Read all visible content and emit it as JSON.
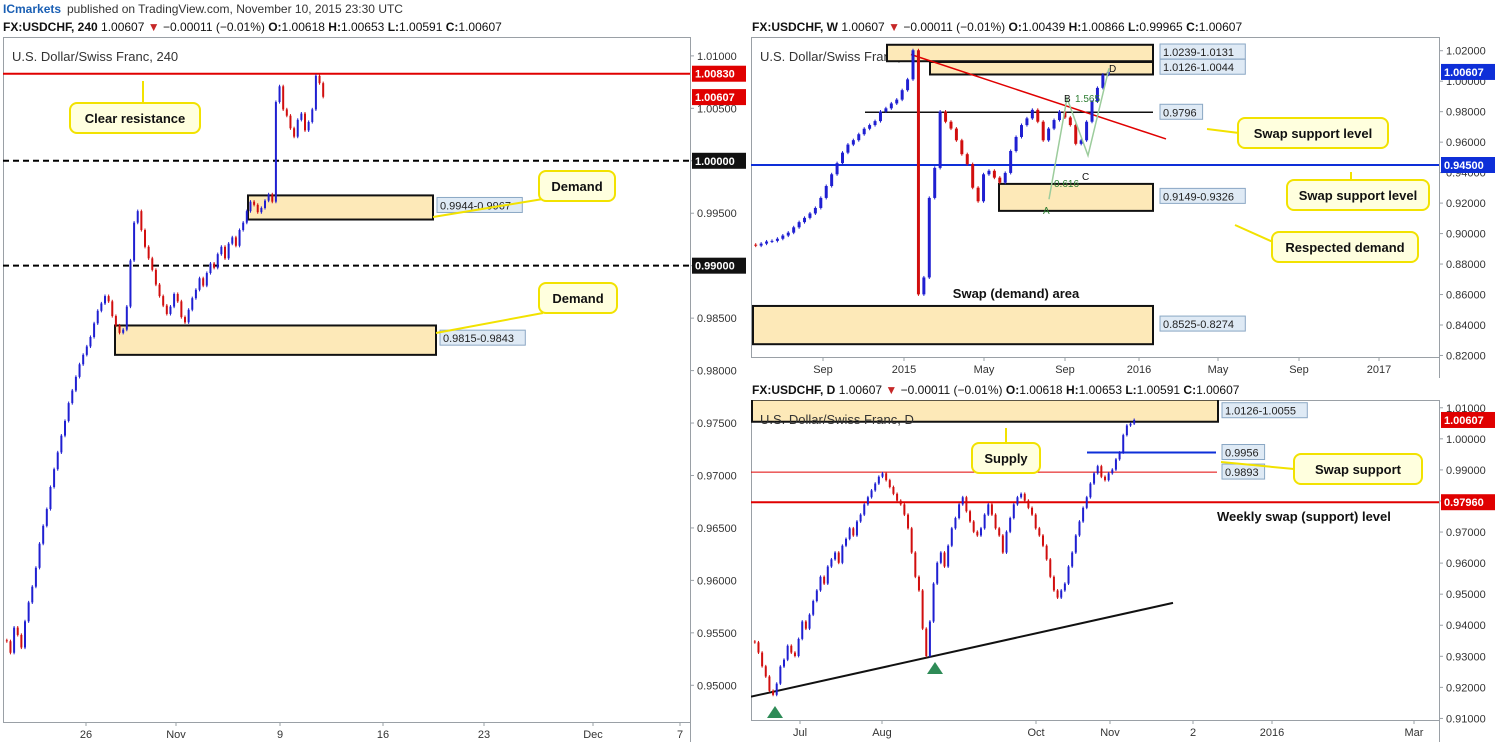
{
  "topbar": {
    "brand": "ICmarkets",
    "published": "published on TradingView.com, November 10, 2015 23:30 UTC"
  },
  "colors": {
    "bull": "#1f1fd1",
    "bear": "#d10e0e",
    "zone_fill": "#fde9b8",
    "callout_border": "#f2e200",
    "callout_fill": "#ffffde",
    "resistance": "#e00000",
    "swap_blue": "#0e2fd8",
    "arrow_green": "#2e8b57"
  },
  "headers": {
    "h4": {
      "symbol": "FX:USDCHF, 240",
      "price": "1.00607",
      "change": "−0.00011 (−0.01%)",
      "o_label": "O:",
      "o": "1.00618",
      "h_label": "H:",
      "h": "1.00653",
      "l_label": "L:",
      "l": "1.00591",
      "c_label": "C:",
      "c": "1.00607"
    },
    "w": {
      "symbol": "FX:USDCHF, W",
      "price": "1.00607",
      "change": "−0.00011 (−0.01%)",
      "o_label": "O:",
      "o": "1.00439",
      "h_label": "H:",
      "h": "1.00866",
      "l_label": "L:",
      "l": "0.99965",
      "c_label": "C:",
      "c": "1.00607"
    },
    "d": {
      "symbol": "FX:USDCHF, D",
      "price": "1.00607",
      "change": "−0.00011 (−0.01%)",
      "o_label": "O:",
      "o": "1.00618",
      "h_label": "H:",
      "h": "1.00653",
      "l_label": "L:",
      "l": "1.00591",
      "c_label": "C:",
      "c": "1.00607"
    }
  },
  "chart_data": [
    {
      "id": "h4",
      "type": "candlestick",
      "title": "U.S. Dollar/Swiss Franc, 240",
      "ylim": [
        0.9465,
        1.0118
      ],
      "yticks": [
        "1.01000",
        "1.00500",
        "1.00000",
        "0.99500",
        "0.99000",
        "0.98500",
        "0.98000",
        "0.97500",
        "0.97000",
        "0.96500",
        "0.96000",
        "0.95500",
        "0.95000"
      ],
      "xticks": [
        "26",
        "Nov",
        "9",
        "16",
        "23",
        "Dec",
        "7"
      ],
      "closes": [
        0.9542,
        0.9531,
        0.9555,
        0.9548,
        0.9536,
        0.9561,
        0.9579,
        0.9594,
        0.9612,
        0.9635,
        0.9652,
        0.9668,
        0.9689,
        0.9706,
        0.9722,
        0.9738,
        0.9752,
        0.9769,
        0.9781,
        0.9794,
        0.9806,
        0.9815,
        0.9823,
        0.9832,
        0.9845,
        0.9857,
        0.9864,
        0.9871,
        0.9866,
        0.9852,
        0.9843,
        0.9836,
        0.9839,
        0.9861,
        0.9905,
        0.9941,
        0.9952,
        0.9934,
        0.9918,
        0.9907,
        0.9896,
        0.9882,
        0.9871,
        0.9862,
        0.9854,
        0.9861,
        0.9873,
        0.9866,
        0.9851,
        0.9846,
        0.9858,
        0.9869,
        0.9877,
        0.9888,
        0.9881,
        0.9893,
        0.9902,
        0.9898,
        0.9911,
        0.9918,
        0.9907,
        0.9921,
        0.9927,
        0.9919,
        0.9934,
        0.9941,
        0.9952,
        0.9961,
        0.9958,
        0.9951,
        0.9955,
        0.9962,
        0.9968,
        0.9961,
        1.0056,
        1.0071,
        1.0049,
        1.0043,
        1.0031,
        1.0023,
        1.0039,
        1.0045,
        1.0029,
        1.0037,
        1.0049,
        1.0081,
        1.0074,
        1.0061
      ],
      "h_lines": [
        {
          "value": 1.0083,
          "label": "1.00830",
          "color": "#e00000",
          "style": "solid"
        },
        {
          "value": 1.0,
          "label": "1.00000",
          "color": "#000000",
          "style": "dashed"
        },
        {
          "value": 0.99,
          "label": "0.99000",
          "color": "#000000",
          "style": "dashed"
        }
      ],
      "last_price": {
        "value": 1.00607,
        "label": "1.00607"
      },
      "zones": [
        {
          "from": 0.9944,
          "to": 0.9967,
          "label": "0.9944-0.9967"
        },
        {
          "from": 0.9815,
          "to": 0.9843,
          "label": "0.9815-0.9843"
        }
      ],
      "annotations": [
        "Clear resistance",
        "Demand",
        "Demand"
      ]
    },
    {
      "id": "w",
      "type": "candlestick",
      "title": "U.S. Dollar/Swiss Franc, W",
      "ylim": [
        0.819,
        1.029
      ],
      "yticks": [
        "1.02000",
        "1.00000",
        "0.98000",
        "0.96000",
        "0.94000",
        "0.92000",
        "0.90000",
        "0.88000",
        "0.86000",
        "0.84000",
        "0.82000"
      ],
      "xticks": [
        "Sep",
        "2015",
        "May",
        "Sep",
        "2016",
        "May",
        "Sep",
        "2017"
      ],
      "closes": [
        0.8921,
        0.8934,
        0.8948,
        0.8952,
        0.8966,
        0.8987,
        0.9006,
        0.9041,
        0.9075,
        0.9103,
        0.9132,
        0.9168,
        0.9234,
        0.9312,
        0.9389,
        0.9462,
        0.9531,
        0.9584,
        0.9613,
        0.9652,
        0.9688,
        0.9712,
        0.9738,
        0.9801,
        0.9822,
        0.9854,
        0.9879,
        0.9941,
        1.0012,
        1.0203,
        0.8601,
        0.8712,
        0.9234,
        0.9431,
        0.9801,
        0.9734,
        0.9689,
        0.9612,
        0.9521,
        0.9456,
        0.9301,
        0.9212,
        0.9389,
        0.9412,
        0.9367,
        0.9334,
        0.9398,
        0.9542,
        0.9634,
        0.9712,
        0.9756,
        0.9812,
        0.9734,
        0.9612,
        0.9689,
        0.9745,
        0.9801,
        0.9762,
        0.9712,
        0.9589,
        0.9612,
        0.9734,
        0.9867,
        0.9956,
        1.0043,
        1.0061
      ],
      "h_lines": [
        {
          "value": 0.9796,
          "label": "0.9796",
          "color": "#000000",
          "style": "solid"
        },
        {
          "value": 0.945,
          "label": "0.94500",
          "color": "#0e2fd8",
          "style": "solid"
        }
      ],
      "last_price": {
        "value": 1.00607,
        "label": "1.00607"
      },
      "zones": [
        {
          "from": 1.0131,
          "to": 1.0239,
          "label": "1.0239-1.0131"
        },
        {
          "from": 1.0044,
          "to": 1.0126,
          "label": "1.0126-1.0044"
        },
        {
          "from": 0.9149,
          "to": 0.9326,
          "label": "0.9149-0.9326"
        },
        {
          "from": 0.8274,
          "to": 0.8525,
          "label": "0.8525-0.8274"
        }
      ],
      "pattern_labels": [
        "A",
        "B",
        "C",
        "D",
        "0.616",
        "1.565"
      ],
      "annotations": [
        "Swap support level",
        "Swap support level",
        "Respected demand",
        "Swap (demand) area"
      ]
    },
    {
      "id": "d",
      "type": "candlestick",
      "title": "U.S. Dollar/Swiss Franc, D",
      "ylim": [
        0.9095,
        1.0125
      ],
      "yticks": [
        "1.01000",
        "1.00000",
        "0.99000",
        "0.98000",
        "0.97000",
        "0.96000",
        "0.95000",
        "0.94000",
        "0.93000",
        "0.92000",
        "0.91000"
      ],
      "xticks": [
        "Jul",
        "Aug",
        "Oct",
        "Nov",
        "2",
        "2016",
        "Mar"
      ],
      "closes": [
        0.9345,
        0.9312,
        0.9268,
        0.9235,
        0.9189,
        0.9176,
        0.9212,
        0.9267,
        0.9289,
        0.9334,
        0.9312,
        0.9301,
        0.9356,
        0.9412,
        0.9389,
        0.9434,
        0.9478,
        0.9512,
        0.9556,
        0.9534,
        0.9589,
        0.9612,
        0.9634,
        0.9601,
        0.9656,
        0.9678,
        0.9712,
        0.9689,
        0.9734,
        0.9756,
        0.9789,
        0.9812,
        0.9834,
        0.9856,
        0.9878,
        0.9889,
        0.9867,
        0.9845,
        0.9823,
        0.9801,
        0.9789,
        0.9756,
        0.9712,
        0.9634,
        0.9556,
        0.9512,
        0.9389,
        0.9301,
        0.9412,
        0.9534,
        0.9601,
        0.9634,
        0.9589,
        0.9656,
        0.9712,
        0.9745,
        0.9789,
        0.9812,
        0.9767,
        0.9734,
        0.9701,
        0.9689,
        0.9712,
        0.9756,
        0.9789,
        0.9756,
        0.9712,
        0.9689,
        0.9634,
        0.9701,
        0.9745,
        0.9789,
        0.9812,
        0.9823,
        0.9801,
        0.9778,
        0.9756,
        0.9712,
        0.9689,
        0.9656,
        0.9612,
        0.9556,
        0.9512,
        0.9489,
        0.9512,
        0.9534,
        0.9589,
        0.9634,
        0.9689,
        0.9734,
        0.9778,
        0.9812,
        0.9856,
        0.9889,
        0.9912,
        0.9878,
        0.9867,
        0.9889,
        0.9901,
        0.9934,
        0.9956,
        1.0012,
        1.0043,
        1.0049,
        1.0061
      ],
      "h_lines": [
        {
          "value": 0.9956,
          "label": "0.9956",
          "color": "#0e2fd8",
          "style": "solid"
        },
        {
          "value": 0.9893,
          "label": "0.9893",
          "color": "#e00000",
          "style": "solid"
        },
        {
          "value": 0.9796,
          "label": "0.97960",
          "color": "#e00000",
          "style": "solid"
        }
      ],
      "last_price": {
        "value": 1.00607,
        "label": "1.00607"
      },
      "zones": [
        {
          "from": 1.0055,
          "to": 1.0126,
          "label": "1.0126-1.0055"
        }
      ],
      "annotations": [
        "Supply",
        "Swap support",
        "Weekly swap (support) level"
      ]
    }
  ]
}
